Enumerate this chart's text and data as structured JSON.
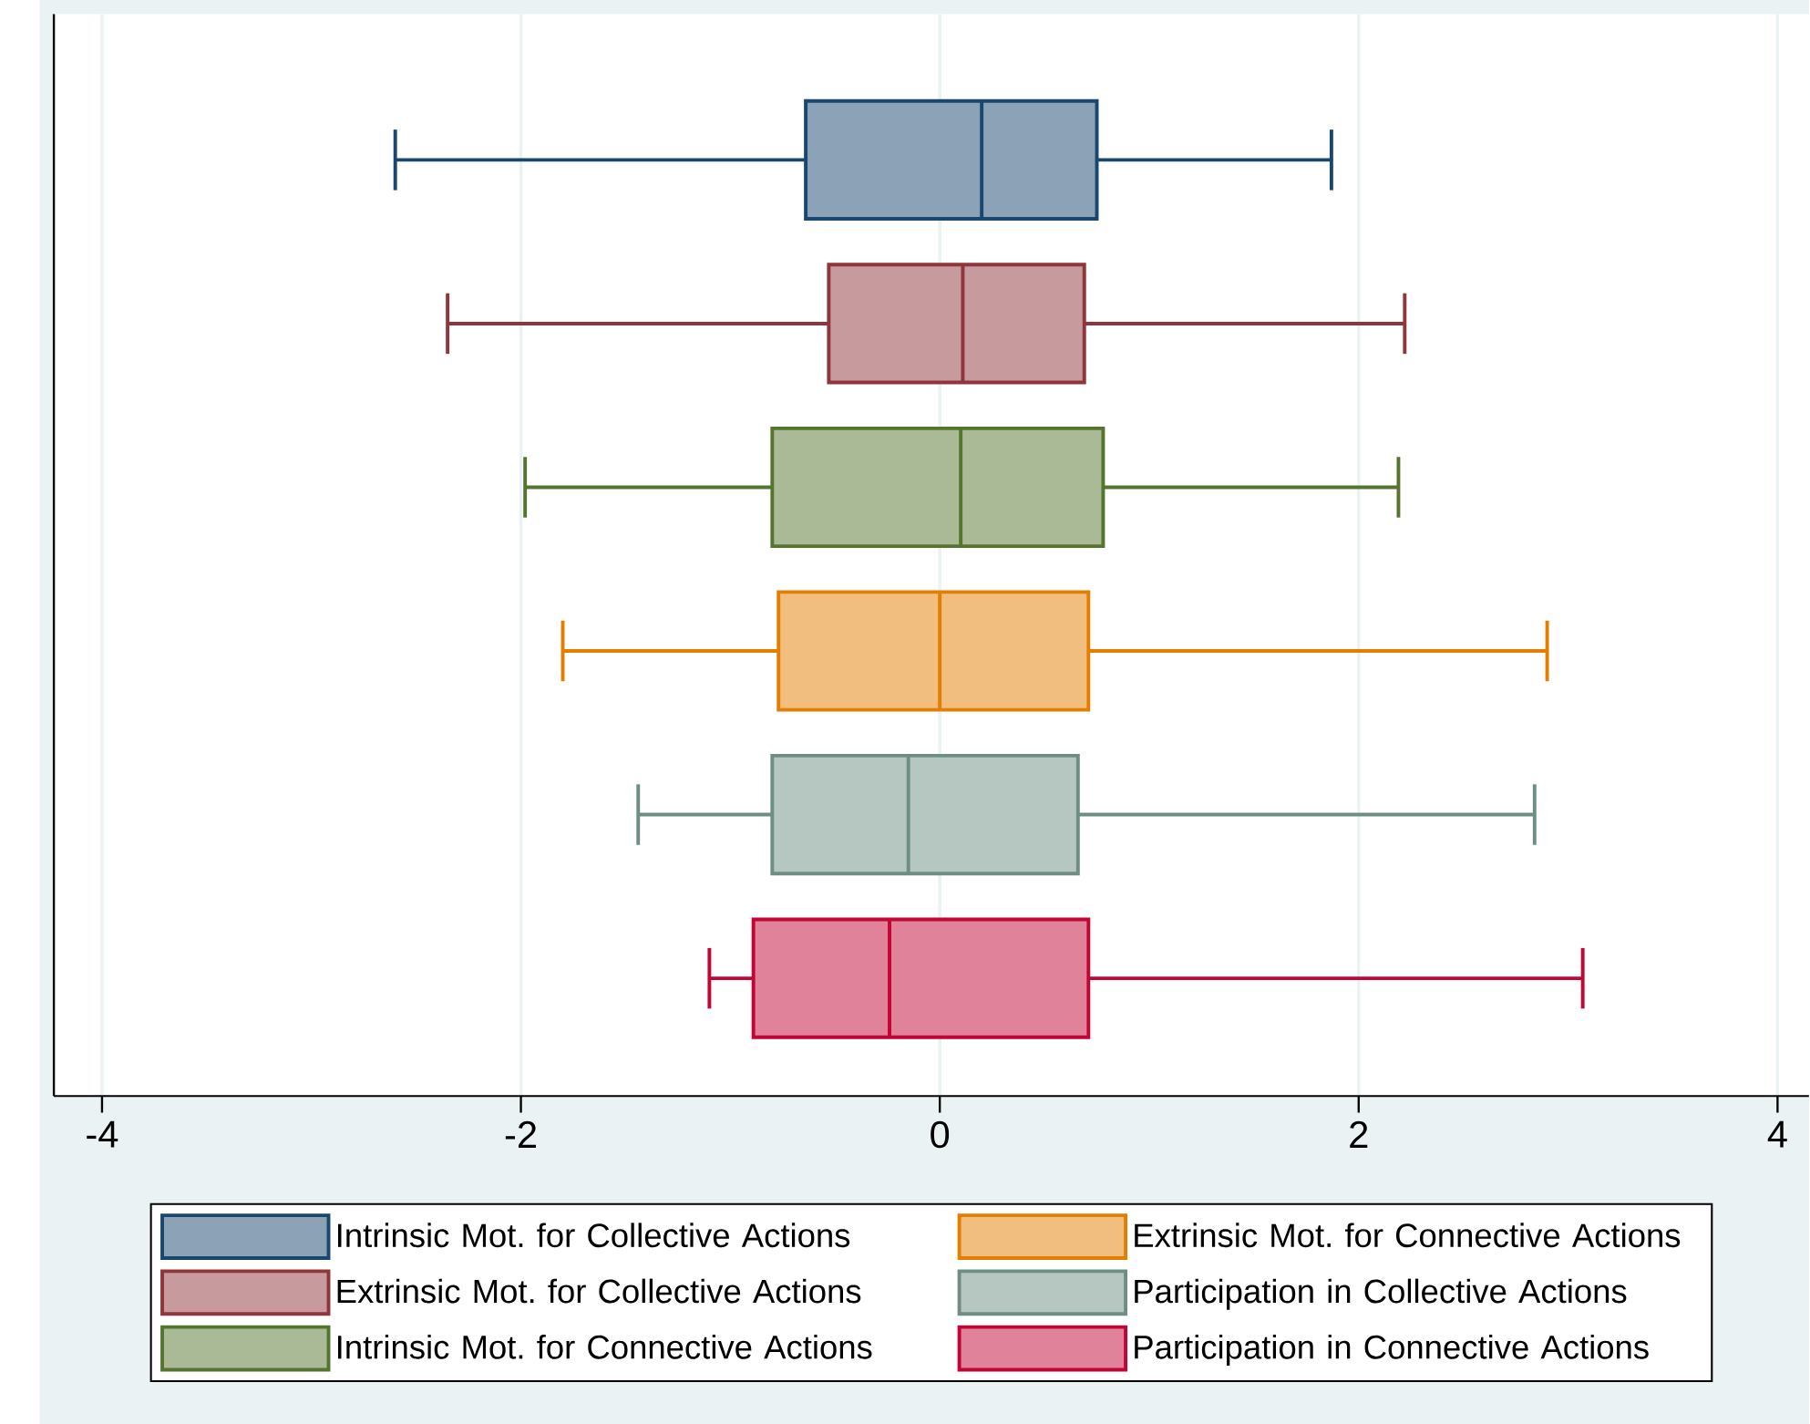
{
  "chart_data": {
    "type": "box",
    "orientation": "horizontal",
    "categories": [
      null
    ],
    "xlim": [
      -4.23,
      4.15
    ],
    "xticks": [
      -4,
      -2,
      0,
      2,
      4
    ],
    "grid": "x",
    "legend": "bottom",
    "series": [
      {
        "name": "Intrinsic Mot. for Collective Actions",
        "color": "#1a476f",
        "boxes": [
          {
            "low": -2.6,
            "q1": -0.64,
            "median": 0.2,
            "q3": 0.75,
            "high": 1.87
          }
        ]
      },
      {
        "name": "Extrinsic Mot. for Collective Actions",
        "color": "#90353b",
        "boxes": [
          {
            "low": -2.35,
            "q1": -0.53,
            "median": 0.11,
            "q3": 0.69,
            "high": 2.22
          }
        ]
      },
      {
        "name": "Intrinsic Mot. for Connective Actions",
        "color": "#55752f",
        "boxes": [
          {
            "low": -1.98,
            "q1": -0.8,
            "median": 0.1,
            "q3": 0.78,
            "high": 2.19
          }
        ]
      },
      {
        "name": "Extrinsic Mot. for Connective Actions",
        "color": "#e37e00",
        "boxes": [
          {
            "low": -1.8,
            "q1": -0.77,
            "median": 0.0,
            "q3": 0.71,
            "high": 2.9
          }
        ]
      },
      {
        "name": "Participation in Collective Actions",
        "color": "#6e8e84",
        "boxes": [
          {
            "low": -1.44,
            "q1": -0.8,
            "median": -0.15,
            "q3": 0.66,
            "high": 2.84
          }
        ]
      },
      {
        "name": "Participation in Connective Actions",
        "color": "#c10534",
        "boxes": [
          {
            "low": -1.1,
            "q1": -0.89,
            "median": -0.24,
            "q3": 0.71,
            "high": 3.07
          }
        ]
      }
    ]
  }
}
